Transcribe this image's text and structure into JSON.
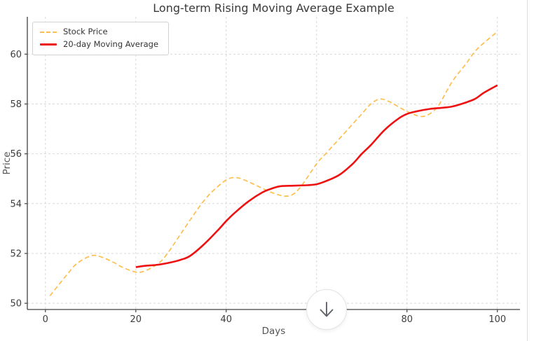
{
  "page": {
    "background": "#ffffff",
    "right_edge_border": "#dcdcdc"
  },
  "chart_data": {
    "type": "line",
    "title": "Long-term Rising Moving Average Example",
    "xlabel": "Days",
    "ylabel": "Price",
    "xlim": [
      -4,
      105
    ],
    "ylim": [
      49.75,
      61.5
    ],
    "xticks": [
      0,
      20,
      40,
      60,
      80,
      100
    ],
    "yticks": [
      50,
      52,
      54,
      56,
      58,
      60
    ],
    "grid": true,
    "grid_color": "#d9d9d9",
    "spine_color": "#424242",
    "tick_label_color": "#3d3d3d",
    "title_color": "#3a3a3a",
    "axis_label_color": "#555555",
    "legend_position": "upper-left",
    "series": [
      {
        "name": "Stock Price",
        "color": "#ffbd4d",
        "style": "dashed",
        "width": 1.7,
        "x": [
          1,
          3,
          5,
          7,
          10,
          12,
          15,
          17,
          20,
          22,
          25,
          27,
          30,
          33,
          35,
          37,
          40,
          42,
          44,
          47,
          50,
          53,
          55,
          57,
          60,
          62,
          65,
          68,
          70,
          72,
          74,
          76,
          78,
          80,
          83,
          85,
          87,
          90,
          93,
          95,
          97,
          100
        ],
        "y": [
          50.3,
          50.75,
          51.2,
          51.6,
          51.9,
          51.88,
          51.65,
          51.45,
          51.25,
          51.3,
          51.6,
          52.0,
          52.8,
          53.6,
          54.1,
          54.5,
          54.95,
          55.05,
          54.95,
          54.7,
          54.45,
          54.3,
          54.4,
          54.8,
          55.6,
          56.0,
          56.6,
          57.2,
          57.6,
          58.0,
          58.2,
          58.1,
          57.9,
          57.7,
          57.5,
          57.6,
          57.95,
          58.9,
          59.6,
          60.1,
          60.45,
          60.9
        ]
      },
      {
        "name": "20-day Moving Average",
        "color": "#ee1111",
        "style": "solid",
        "width": 2.6,
        "x": [
          20,
          22,
          25,
          28,
          30,
          32,
          35,
          38,
          40,
          42,
          45,
          48,
          50,
          52,
          55,
          58,
          60,
          62,
          65,
          68,
          70,
          72,
          75,
          78,
          80,
          82,
          85,
          88,
          90,
          92,
          95,
          97,
          100
        ],
        "y": [
          51.45,
          51.5,
          51.55,
          51.65,
          51.75,
          51.9,
          52.35,
          52.9,
          53.3,
          53.65,
          54.1,
          54.45,
          54.6,
          54.7,
          54.72,
          54.74,
          54.78,
          54.9,
          55.15,
          55.6,
          56.0,
          56.35,
          56.95,
          57.4,
          57.6,
          57.7,
          57.8,
          57.85,
          57.9,
          58.0,
          58.2,
          58.45,
          58.75
        ]
      }
    ]
  },
  "overlay": {
    "scroll_button": {
      "icon": "down-arrow"
    }
  }
}
